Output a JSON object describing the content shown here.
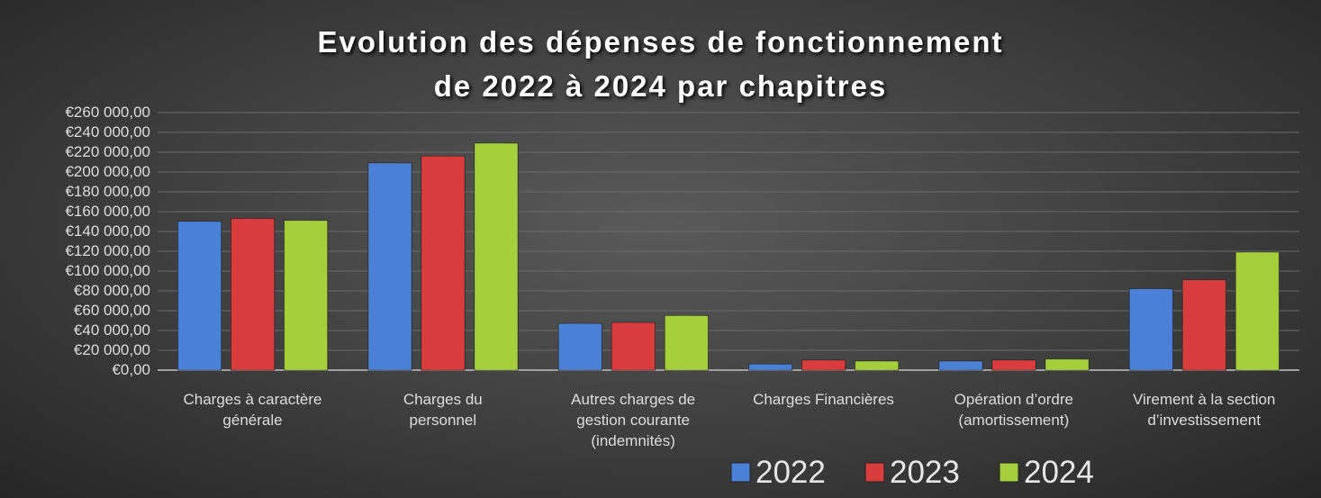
{
  "chart_data": {
    "type": "bar",
    "title": "Evolution des dépenses de fonctionnement\nde 2022 à 2024 par chapitres",
    "categories": [
      "Charges à caractère\ngénérale",
      "Charges du\npersonnel",
      "Autres charges de\ngestion courante\n(indemnités)",
      "Charges Financières",
      "Opération d’ordre\n(amortissement)",
      "Virement à la section\nd’investissement"
    ],
    "series": [
      {
        "name": "2022",
        "color": "#4a80d6",
        "values": [
          150000,
          209000,
          47000,
          6000,
          9000,
          82000
        ]
      },
      {
        "name": "2023",
        "color": "#d83c3c",
        "values": [
          153000,
          216000,
          48000,
          10000,
          10000,
          91000
        ]
      },
      {
        "name": "2024",
        "color": "#a6cf3c",
        "values": [
          151000,
          229000,
          55000,
          9000,
          11000,
          119000
        ]
      }
    ],
    "ylim": [
      0,
      260000
    ],
    "yticks": [
      {
        "value": 0,
        "label": "€0,00"
      },
      {
        "value": 20000,
        "label": "€20 000,00"
      },
      {
        "value": 40000,
        "label": "€40 000,00"
      },
      {
        "value": 60000,
        "label": "€60 000,00"
      },
      {
        "value": 80000,
        "label": "€80 000,00"
      },
      {
        "value": 100000,
        "label": "€100 000,00"
      },
      {
        "value": 120000,
        "label": "€120 000,00"
      },
      {
        "value": 140000,
        "label": "€140 000,00"
      },
      {
        "value": 160000,
        "label": "€160 000,00"
      },
      {
        "value": 180000,
        "label": "€180 000,00"
      },
      {
        "value": 200000,
        "label": "€200 000,00"
      },
      {
        "value": 220000,
        "label": "€220 000,00"
      },
      {
        "value": 240000,
        "label": "€240 000,00"
      },
      {
        "value": 260000,
        "label": "€260 000,00"
      }
    ],
    "grid": true,
    "legend": "bottom"
  }
}
